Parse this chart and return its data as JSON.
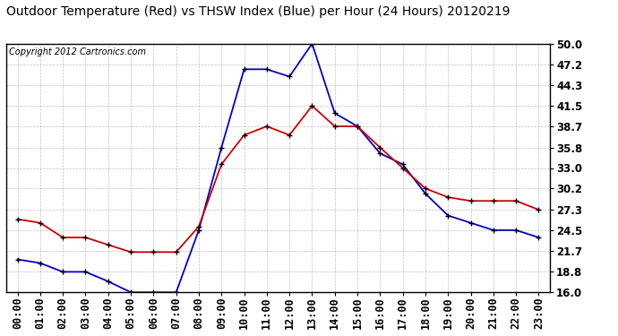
{
  "title": "Outdoor Temperature (Red) vs THSW Index (Blue) per Hour (24 Hours) 20120219",
  "copyright": "Copyright 2012 Cartronics.com",
  "hours": [
    "00:00",
    "01:00",
    "02:00",
    "03:00",
    "04:00",
    "05:00",
    "06:00",
    "07:00",
    "08:00",
    "09:00",
    "10:00",
    "11:00",
    "12:00",
    "13:00",
    "14:00",
    "15:00",
    "16:00",
    "17:00",
    "18:00",
    "19:00",
    "20:00",
    "21:00",
    "22:00",
    "23:00"
  ],
  "red_temp": [
    26.0,
    25.5,
    23.5,
    23.5,
    22.5,
    21.5,
    21.5,
    21.5,
    25.0,
    33.5,
    37.5,
    38.7,
    37.5,
    41.5,
    38.7,
    38.7,
    35.8,
    33.0,
    30.2,
    29.0,
    28.5,
    28.5,
    28.5,
    27.3
  ],
  "blue_thsw": [
    20.5,
    20.0,
    18.8,
    18.8,
    17.5,
    16.0,
    16.0,
    16.0,
    24.5,
    35.8,
    46.5,
    46.5,
    45.5,
    50.0,
    40.5,
    38.7,
    35.0,
    33.5,
    29.5,
    26.5,
    25.5,
    24.5,
    24.5,
    23.5
  ],
  "ylim": [
    16.0,
    50.0
  ],
  "yticks": [
    16.0,
    18.8,
    21.7,
    24.5,
    27.3,
    30.2,
    33.0,
    35.8,
    38.7,
    41.5,
    44.3,
    47.2,
    50.0
  ],
  "ytick_labels": [
    "16.0",
    "18.8",
    "21.7",
    "24.5",
    "27.3",
    "30.2",
    "33.0",
    "35.8",
    "38.7",
    "41.5",
    "44.3",
    "47.2",
    "50.0"
  ],
  "bg_color": "#ffffff",
  "plot_bg_color": "#ffffff",
  "grid_color": "#b0b0b0",
  "red_color": "#cc0000",
  "blue_color": "#0000cc",
  "title_fontsize": 10,
  "copyright_fontsize": 7,
  "tick_fontsize": 8.5
}
